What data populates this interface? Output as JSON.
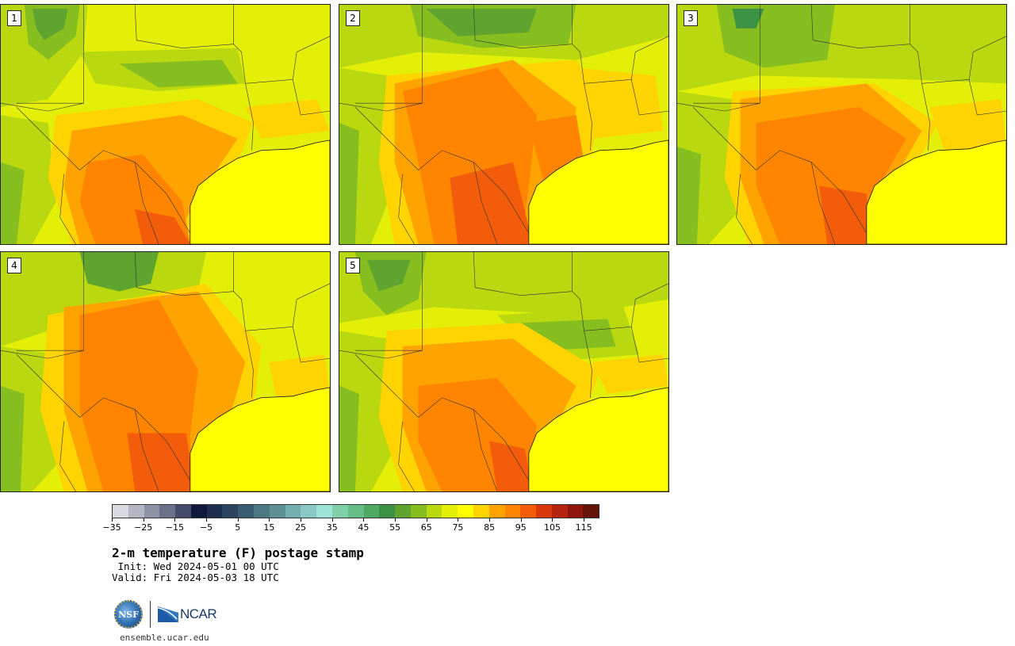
{
  "panels": [
    {
      "label": "1",
      "variant": 0
    },
    {
      "label": "2",
      "variant": 1
    },
    {
      "label": "3",
      "variant": 2
    },
    {
      "label": "4",
      "variant": 3
    },
    {
      "label": "5",
      "variant": 4
    }
  ],
  "colorbar": {
    "colors": [
      "#d8dae0",
      "#b4b7c3",
      "#8e93a5",
      "#6a7188",
      "#434c6b",
      "#0f1a3a",
      "#1d2e4d",
      "#2a445f",
      "#3a5c70",
      "#4c7884",
      "#5e9098",
      "#73aeb0",
      "#88c9c6",
      "#9fe3d6",
      "#7fcfa8",
      "#66be86",
      "#4fa962",
      "#3b9144",
      "#5fa42e",
      "#86bd1f",
      "#b9d80f",
      "#e3ef07",
      "#ffff00",
      "#ffd400",
      "#ffa300",
      "#ff8400",
      "#f25c0a",
      "#d9380d",
      "#b5220e",
      "#8f160c",
      "#651209"
    ],
    "ticks": [
      "−35",
      "−25",
      "−15",
      "−5",
      "5",
      "15",
      "25",
      "35",
      "45",
      "55",
      "65",
      "75",
      "85",
      "95",
      "105",
      "115"
    ]
  },
  "title": "2-m temperature (F) postage stamp",
  "init": " Init: Wed 2024-05-01 00 UTC",
  "valid": "Valid: Fri 2024-05-03 18 UTC",
  "logos": {
    "nsf": "NSF",
    "ncar": "NCAR"
  },
  "footer_url": "ensemble.ucar.edu"
}
